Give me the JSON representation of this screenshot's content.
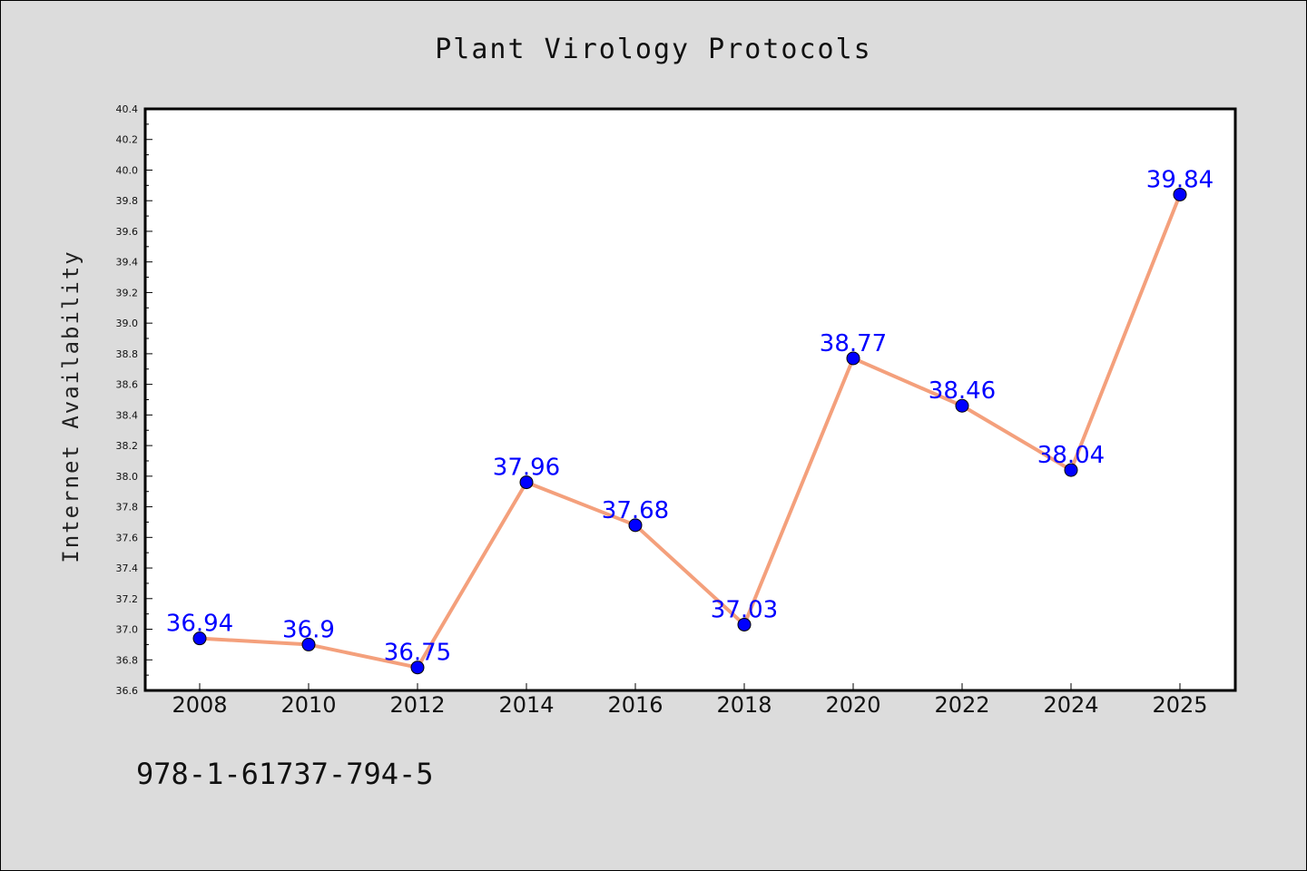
{
  "chart_data": {
    "type": "line",
    "title": "Plant Virology Protocols",
    "xlabel": "",
    "ylabel": "Internet Availability",
    "categories": [
      "2008",
      "2010",
      "2012",
      "2014",
      "2016",
      "2018",
      "2020",
      "2022",
      "2024",
      "2025"
    ],
    "series": [
      {
        "values": [
          36.94,
          36.9,
          36.75,
          37.96,
          37.68,
          37.03,
          38.77,
          38.46,
          38.04,
          39.84
        ],
        "labels": [
          "36.94",
          "36.9",
          "36.75",
          "37.96",
          "37.68",
          "37.03",
          "38.77",
          "38.46",
          "38.04",
          "39.84"
        ],
        "line_color": "#f4a07c",
        "marker_color": "#0000ff"
      }
    ],
    "ylim": [
      36.6,
      40.4
    ],
    "y_ticks": [
      "36.6",
      "36.8",
      "37.0",
      "37.2",
      "37.4",
      "37.6",
      "37.8",
      "38.0",
      "38.2",
      "38.4",
      "38.6",
      "38.8",
      "39.0",
      "39.2",
      "39.4",
      "39.6",
      "39.8",
      "40.0",
      "40.2",
      "40.4"
    ],
    "grid": false,
    "legend": "none"
  },
  "footer": {
    "isbn": "978-1-61737-794-5"
  },
  "colors": {
    "background": "#dcdcdc",
    "plot_background": "#ffffff",
    "data_label": "#0000ff"
  }
}
